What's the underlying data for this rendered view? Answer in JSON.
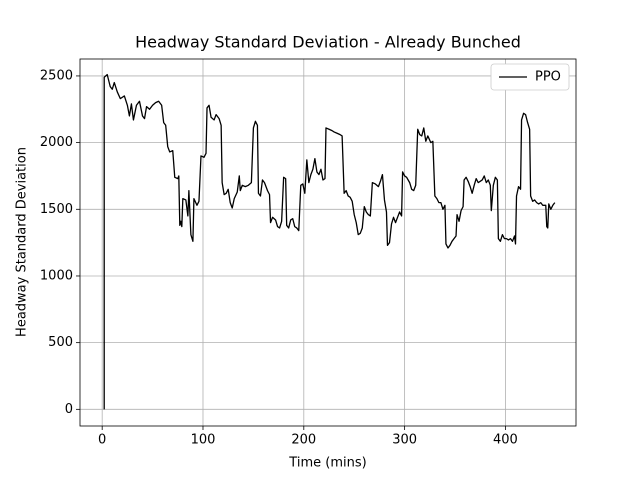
{
  "chart_data": {
    "type": "line",
    "title": "Headway Standard Deviation - Already Bunched",
    "x_label": "Time (mins)",
    "y_label": "Headway Standard Deviation",
    "xlim": [
      -22,
      470
    ],
    "ylim": [
      -125,
      2627
    ],
    "xticks": [
      0,
      100,
      200,
      300,
      400
    ],
    "yticks": [
      0,
      500,
      1000,
      1500,
      2000,
      2500
    ],
    "grid": true,
    "legend_position": "upper right",
    "x": [
      2,
      2,
      5,
      8,
      10,
      12,
      15,
      18,
      22,
      25,
      27,
      29,
      31,
      34,
      37,
      40,
      42,
      44,
      47,
      50,
      53,
      56,
      59,
      61,
      63,
      65,
      67,
      70,
      72,
      75,
      76,
      77,
      78,
      79,
      80,
      83,
      85,
      86,
      88,
      90,
      91,
      94,
      96,
      98,
      101,
      103,
      104,
      106,
      108,
      111,
      113,
      116,
      118,
      119,
      121,
      123,
      125,
      127,
      129,
      131,
      134,
      136,
      137,
      139,
      142,
      145,
      148,
      150,
      152,
      154,
      155,
      157,
      159,
      161,
      164,
      166,
      167,
      169,
      172,
      174,
      176,
      178,
      180,
      182,
      183,
      185,
      187,
      189,
      191,
      193,
      195,
      197,
      199,
      201,
      203,
      205,
      207,
      209,
      211,
      213,
      215,
      217,
      219,
      221,
      222,
      225,
      228,
      230,
      233,
      236,
      238,
      240,
      242,
      244,
      246,
      248,
      250,
      252,
      254,
      256,
      258,
      260,
      262,
      264,
      266,
      268,
      271,
      274,
      276,
      278,
      280,
      282,
      283,
      285,
      287,
      289,
      291,
      293,
      295,
      297,
      298,
      300,
      302,
      305,
      307,
      309,
      311,
      313,
      315,
      317,
      319,
      321,
      323,
      326,
      328,
      330,
      332,
      334,
      336,
      338,
      340,
      341,
      343,
      345,
      347,
      349,
      351,
      352,
      354,
      356,
      358,
      359,
      361,
      363,
      365,
      367,
      369,
      371,
      373,
      375,
      377,
      379,
      381,
      383,
      385,
      386,
      388,
      390,
      392,
      393,
      395,
      397,
      399,
      401,
      403,
      405,
      407,
      409,
      410,
      411,
      413,
      415,
      416,
      418,
      420,
      422,
      424,
      425,
      427,
      429,
      431,
      433,
      435,
      437,
      440,
      441,
      442,
      443,
      445,
      447,
      449
    ],
    "series": [
      {
        "name": "PPO",
        "color": "#000000",
        "values": [
          0,
          2490,
          2510,
          2420,
          2400,
          2450,
          2380,
          2330,
          2350,
          2280,
          2200,
          2290,
          2170,
          2280,
          2310,
          2200,
          2180,
          2270,
          2250,
          2280,
          2300,
          2310,
          2280,
          2150,
          2130,
          1970,
          1930,
          1940,
          1740,
          1730,
          1750,
          1380,
          1410,
          1370,
          1580,
          1570,
          1450,
          1640,
          1310,
          1260,
          1580,
          1530,
          1560,
          1900,
          1890,
          1920,
          2260,
          2280,
          2190,
          2170,
          2210,
          2180,
          2130,
          1700,
          1610,
          1620,
          1650,
          1550,
          1510,
          1580,
          1630,
          1750,
          1640,
          1680,
          1670,
          1680,
          1700,
          2110,
          2160,
          2130,
          1620,
          1600,
          1720,
          1700,
          1640,
          1610,
          1400,
          1440,
          1420,
          1370,
          1360,
          1410,
          1740,
          1730,
          1380,
          1360,
          1420,
          1430,
          1370,
          1360,
          1340,
          1680,
          1690,
          1620,
          1870,
          1700,
          1760,
          1800,
          1880,
          1780,
          1760,
          1800,
          1720,
          1730,
          2110,
          2100,
          2090,
          2080,
          2070,
          2060,
          2050,
          1620,
          1640,
          1600,
          1590,
          1560,
          1460,
          1400,
          1310,
          1320,
          1360,
          1520,
          1480,
          1460,
          1450,
          1700,
          1690,
          1670,
          1710,
          1760,
          1570,
          1480,
          1230,
          1250,
          1390,
          1440,
          1400,
          1440,
          1480,
          1450,
          1780,
          1750,
          1740,
          1700,
          1650,
          1640,
          1680,
          2100,
          2060,
          2050,
          2110,
          2010,
          2050,
          2000,
          2010,
          1600,
          1580,
          1550,
          1550,
          1500,
          1530,
          1240,
          1210,
          1230,
          1260,
          1280,
          1300,
          1460,
          1410,
          1490,
          1520,
          1720,
          1740,
          1710,
          1670,
          1620,
          1680,
          1730,
          1700,
          1710,
          1720,
          1750,
          1700,
          1720,
          1680,
          1490,
          1680,
          1740,
          1720,
          1280,
          1260,
          1310,
          1280,
          1280,
          1270,
          1280,
          1260,
          1300,
          1240,
          1600,
          1670,
          1650,
          2170,
          2220,
          2210,
          2150,
          2100,
          1600,
          1560,
          1570,
          1550,
          1540,
          1550,
          1530,
          1530,
          1370,
          1360,
          1540,
          1500,
          1530,
          1550
        ]
      }
    ]
  }
}
